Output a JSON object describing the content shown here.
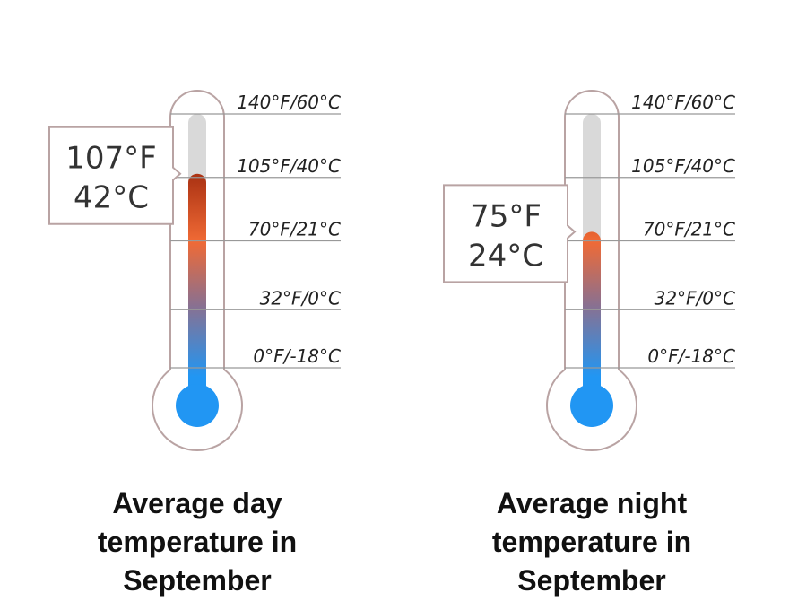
{
  "scale": {
    "label_ticks": [
      {
        "label": "140°F/60°C",
        "fahrenheit": 140
      },
      {
        "label": "105°F/40°C",
        "fahrenheit": 105
      },
      {
        "label": "70°F/21°C",
        "fahrenheit": 70
      },
      {
        "label": "32°F/0°C",
        "fahrenheit": 32
      },
      {
        "label": "0°F/-18°C",
        "fahrenheit": 0
      }
    ]
  },
  "colors": {
    "outline": "#b9a3a3",
    "tube_empty": "#d9d9d9",
    "mercury_hot": "#ad3414",
    "mercury_warm": "#f06a35",
    "mercury_cool": "#8a7090",
    "mercury_cold": "#2196f3",
    "gridline": "#999999",
    "callout_border": "#b9a3a3"
  },
  "thermometers": [
    {
      "id": "day",
      "reading_fahrenheit": 107,
      "callout": {
        "line1": "107°F",
        "line2": "42°C"
      },
      "caption": {
        "line1": "Average day",
        "line2": "temperature in",
        "line3": "September"
      }
    },
    {
      "id": "night",
      "reading_fahrenheit": 75,
      "callout": {
        "line1": "75°F",
        "line2": "24°C"
      },
      "caption": {
        "line1": "Average night",
        "line2": "temperature in",
        "line3": "September"
      }
    }
  ]
}
